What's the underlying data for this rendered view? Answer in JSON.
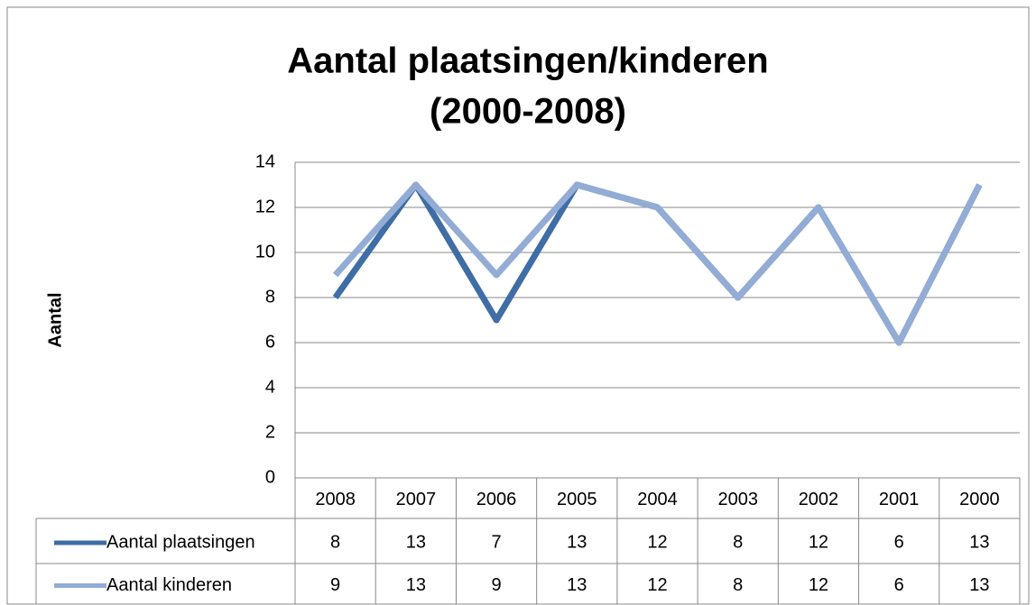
{
  "chart_data": {
    "type": "line",
    "title": [
      "Aantal plaatsingen/kinderen",
      "(2000-2008)"
    ],
    "y_label": "Aantal",
    "categories": [
      "2008",
      "2007",
      "2006",
      "2005",
      "2004",
      "2003",
      "2002",
      "2001",
      "2000"
    ],
    "series": [
      {
        "name": "Aantal plaatsingen",
        "color": "#3f6da6",
        "values": [
          8,
          13,
          7,
          13,
          12,
          8,
          12,
          6,
          13
        ]
      },
      {
        "name": "Aantal kinderen",
        "color": "#93acd6",
        "values": [
          9,
          13,
          9,
          13,
          12,
          8,
          12,
          6,
          13
        ]
      }
    ],
    "ylim": [
      0,
      14
    ],
    "yticks": [
      0,
      2,
      4,
      6,
      8,
      10,
      12,
      14
    ],
    "grid": true,
    "legend": "data-table"
  }
}
